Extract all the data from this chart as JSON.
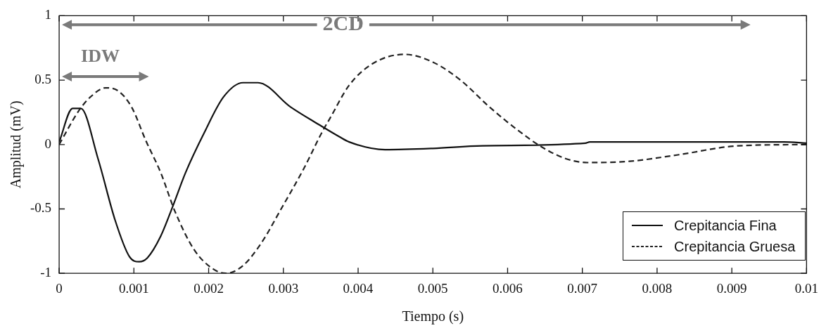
{
  "chart_data": {
    "type": "line",
    "xlabel": "Tiempo (s)",
    "ylabel": "Amplitud (mV)",
    "xlim": [
      0,
      0.01
    ],
    "xticks": [
      0,
      0.001,
      0.002,
      0.003,
      0.004,
      0.005,
      0.006,
      0.007,
      0.008,
      0.009,
      0.01
    ],
    "ylim": [
      -1,
      1
    ],
    "yticks": [
      -1,
      -0.5,
      0,
      0.5,
      1
    ],
    "legend": "bottom right",
    "annotations": [
      "2CD",
      "IDW"
    ],
    "series": [
      {
        "name": "Crepitancia Fina",
        "color": "#111111",
        "line_style": "solid",
        "x": [
          0,
          0.00018,
          0.00029,
          0.00052,
          0.00075,
          0.00094,
          0.00107,
          0.00118,
          0.00136,
          0.00152,
          0.00169,
          0.00194,
          0.0022,
          0.00246,
          0.00266,
          0.0031,
          0.00346,
          0.00375,
          0.00388,
          0.00436,
          0.005,
          0.00566,
          0.00704,
          0.0071,
          0.0097,
          0.01
        ],
        "values": [
          0.02,
          0.28,
          0.28,
          -0.11,
          -0.59,
          -0.87,
          -0.91,
          -0.88,
          -0.71,
          -0.48,
          -0.22,
          0.09,
          0.37,
          0.48,
          0.48,
          0.29,
          0.16,
          0.06,
          0.02,
          -0.04,
          -0.03,
          -0.01,
          0.01,
          0.02,
          0.02,
          0.01
        ]
      },
      {
        "name": "Crepitancia Gruesa",
        "color": "#222222",
        "line_style": "dashed",
        "x": [
          0,
          0.00026,
          0.00042,
          0.00062,
          0.00078,
          0.00097,
          0.00116,
          0.00136,
          0.00155,
          0.00181,
          0.00207,
          0.00223,
          0.00246,
          0.00271,
          0.00297,
          0.00327,
          0.00353,
          0.00362,
          0.00388,
          0.0042,
          0.00462,
          0.005,
          0.00537,
          0.00576,
          0.00614,
          0.00646,
          0.00678,
          0.00707,
          0.00763,
          0.00828,
          0.00908,
          0.01
        ],
        "values": [
          0,
          0.26,
          0.37,
          0.44,
          0.42,
          0.29,
          0.03,
          -0.22,
          -0.52,
          -0.82,
          -0.97,
          -1,
          -0.94,
          -0.76,
          -0.5,
          -0.19,
          0.11,
          0.2,
          0.46,
          0.63,
          0.7,
          0.64,
          0.5,
          0.29,
          0.11,
          -0.02,
          -0.11,
          -0.14,
          -0.13,
          -0.08,
          -0.01,
          0
        ]
      }
    ]
  }
}
